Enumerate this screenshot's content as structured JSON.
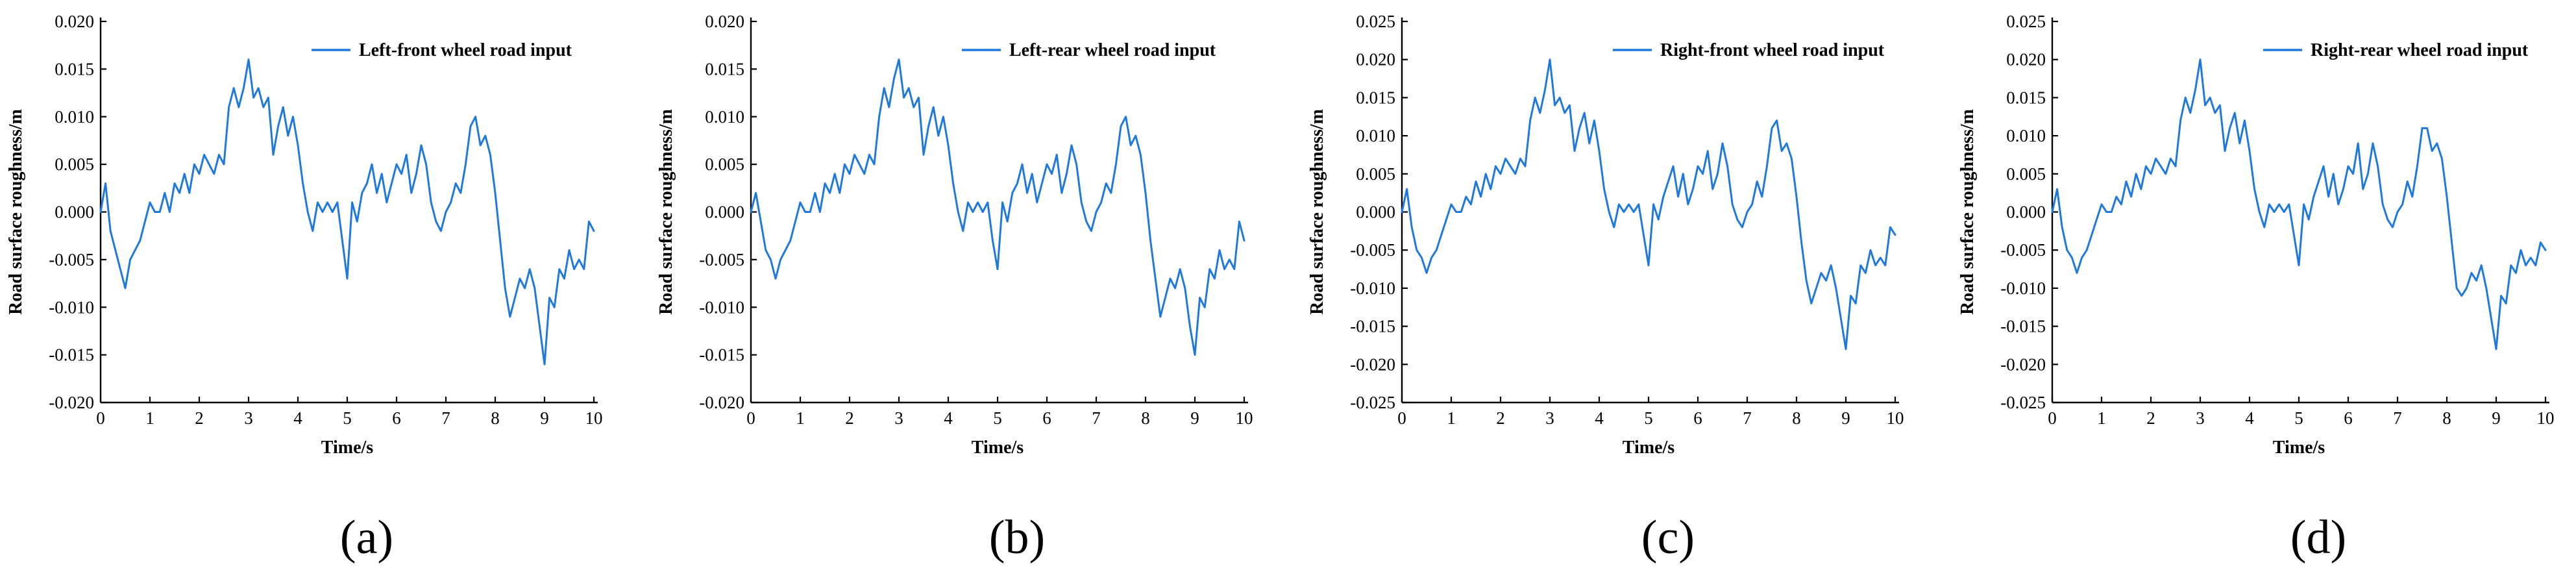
{
  "colors": {
    "series": "#1F78DC",
    "axis": "#000000"
  },
  "chart_data": [
    {
      "panel_label": "(a)",
      "type": "line",
      "xlabel": "Time/s",
      "ylabel": "Road surface roughness/m",
      "xlim": [
        0,
        10
      ],
      "ylim": [
        -0.02,
        0.02
      ],
      "xticks": [
        "0",
        "1",
        "2",
        "3",
        "4",
        "5",
        "6",
        "7",
        "8",
        "9",
        "10"
      ],
      "yticks": [
        -0.02,
        -0.015,
        -0.01,
        -0.005,
        0,
        0.005,
        0.01,
        0.015,
        0.02
      ],
      "ytick_labels": [
        "-0.020",
        "-0.015",
        "-0.010",
        "-0.005",
        "0.000",
        "0.005",
        "0.010",
        "0.015",
        "0.020"
      ],
      "legend": {
        "position": "top-right"
      },
      "series": [
        {
          "name": "Left-front wheel road input",
          "x": [
            0,
            0.1,
            0.2,
            0.3,
            0.4,
            0.5,
            0.6,
            0.7,
            0.8,
            0.9,
            1.0,
            1.1,
            1.2,
            1.3,
            1.4,
            1.5,
            1.6,
            1.7,
            1.8,
            1.9,
            2.0,
            2.1,
            2.2,
            2.3,
            2.4,
            2.5,
            2.6,
            2.7,
            2.8,
            2.9,
            3.0,
            3.1,
            3.2,
            3.3,
            3.4,
            3.5,
            3.6,
            3.7,
            3.8,
            3.9,
            4.0,
            4.1,
            4.2,
            4.3,
            4.4,
            4.5,
            4.6,
            4.7,
            4.8,
            4.9,
            5.0,
            5.1,
            5.2,
            5.3,
            5.4,
            5.5,
            5.6,
            5.7,
            5.8,
            5.9,
            6.0,
            6.1,
            6.2,
            6.3,
            6.4,
            6.5,
            6.6,
            6.7,
            6.8,
            6.9,
            7.0,
            7.1,
            7.2,
            7.3,
            7.4,
            7.5,
            7.6,
            7.7,
            7.8,
            7.9,
            8.0,
            8.1,
            8.2,
            8.3,
            8.4,
            8.5,
            8.6,
            8.7,
            8.8,
            8.9,
            9.0,
            9.1,
            9.2,
            9.3,
            9.4,
            9.5,
            9.6,
            9.7,
            9.8,
            9.9,
            10.0
          ],
          "y": [
            0.0,
            0.003,
            -0.002,
            -0.004,
            -0.006,
            -0.008,
            -0.005,
            -0.004,
            -0.003,
            -0.001,
            0.001,
            0.0,
            0.0,
            0.002,
            0.0,
            0.003,
            0.002,
            0.004,
            0.002,
            0.005,
            0.004,
            0.006,
            0.005,
            0.004,
            0.006,
            0.005,
            0.011,
            0.013,
            0.011,
            0.013,
            0.016,
            0.012,
            0.013,
            0.011,
            0.012,
            0.006,
            0.009,
            0.011,
            0.008,
            0.01,
            0.007,
            0.003,
            0.0,
            -0.002,
            0.001,
            0.0,
            0.001,
            0.0,
            0.001,
            -0.003,
            -0.007,
            0.001,
            -0.001,
            0.002,
            0.003,
            0.005,
            0.002,
            0.004,
            0.001,
            0.003,
            0.005,
            0.004,
            0.006,
            0.002,
            0.004,
            0.007,
            0.005,
            0.001,
            -0.001,
            -0.002,
            0.0,
            0.001,
            0.003,
            0.002,
            0.005,
            0.009,
            0.01,
            0.007,
            0.008,
            0.006,
            0.002,
            -0.003,
            -0.008,
            -0.011,
            -0.009,
            -0.007,
            -0.008,
            -0.006,
            -0.008,
            -0.012,
            -0.016,
            -0.009,
            -0.01,
            -0.006,
            -0.007,
            -0.004,
            -0.006,
            -0.005,
            -0.006,
            -0.001,
            -0.002
          ]
        }
      ]
    },
    {
      "panel_label": "(b)",
      "type": "line",
      "xlabel": "Time/s",
      "ylabel": "Road surface roughness/m",
      "xlim": [
        0,
        10
      ],
      "ylim": [
        -0.02,
        0.02
      ],
      "xticks": [
        "0",
        "1",
        "2",
        "3",
        "4",
        "5",
        "6",
        "7",
        "8",
        "9",
        "10"
      ],
      "yticks": [
        -0.02,
        -0.015,
        -0.01,
        -0.005,
        0,
        0.005,
        0.01,
        0.015,
        0.02
      ],
      "ytick_labels": [
        "-0.020",
        "-0.015",
        "-0.010",
        "-0.005",
        "0.000",
        "0.005",
        "0.010",
        "0.015",
        "0.020"
      ],
      "legend": {
        "position": "top-right"
      },
      "series": [
        {
          "name": "Left-rear wheel road input",
          "x": [
            0,
            0.1,
            0.2,
            0.3,
            0.4,
            0.5,
            0.6,
            0.7,
            0.8,
            0.9,
            1.0,
            1.1,
            1.2,
            1.3,
            1.4,
            1.5,
            1.6,
            1.7,
            1.8,
            1.9,
            2.0,
            2.1,
            2.2,
            2.3,
            2.4,
            2.5,
            2.6,
            2.7,
            2.8,
            2.9,
            3.0,
            3.1,
            3.2,
            3.3,
            3.4,
            3.5,
            3.6,
            3.7,
            3.8,
            3.9,
            4.0,
            4.1,
            4.2,
            4.3,
            4.4,
            4.5,
            4.6,
            4.7,
            4.8,
            4.9,
            5.0,
            5.1,
            5.2,
            5.3,
            5.4,
            5.5,
            5.6,
            5.7,
            5.8,
            5.9,
            6.0,
            6.1,
            6.2,
            6.3,
            6.4,
            6.5,
            6.6,
            6.7,
            6.8,
            6.9,
            7.0,
            7.1,
            7.2,
            7.3,
            7.4,
            7.5,
            7.6,
            7.7,
            7.8,
            7.9,
            8.0,
            8.1,
            8.2,
            8.3,
            8.4,
            8.5,
            8.6,
            8.7,
            8.8,
            8.9,
            9.0,
            9.1,
            9.2,
            9.3,
            9.4,
            9.5,
            9.6,
            9.7,
            9.8,
            9.9,
            10.0
          ],
          "y": [
            0.0,
            0.002,
            -0.001,
            -0.004,
            -0.005,
            -0.007,
            -0.005,
            -0.004,
            -0.003,
            -0.001,
            0.001,
            0.0,
            0.0,
            0.002,
            0.0,
            0.003,
            0.002,
            0.004,
            0.002,
            0.005,
            0.004,
            0.006,
            0.005,
            0.004,
            0.006,
            0.005,
            0.01,
            0.013,
            0.011,
            0.014,
            0.016,
            0.012,
            0.013,
            0.011,
            0.012,
            0.006,
            0.009,
            0.011,
            0.008,
            0.01,
            0.007,
            0.003,
            0.0,
            -0.002,
            0.001,
            0.0,
            0.001,
            0.0,
            0.001,
            -0.003,
            -0.006,
            0.001,
            -0.001,
            0.002,
            0.003,
            0.005,
            0.002,
            0.004,
            0.001,
            0.003,
            0.005,
            0.004,
            0.006,
            0.002,
            0.004,
            0.007,
            0.005,
            0.001,
            -0.001,
            -0.002,
            0.0,
            0.001,
            0.003,
            0.002,
            0.005,
            0.009,
            0.01,
            0.007,
            0.008,
            0.006,
            0.002,
            -0.003,
            -0.007,
            -0.011,
            -0.009,
            -0.007,
            -0.008,
            -0.006,
            -0.008,
            -0.012,
            -0.015,
            -0.009,
            -0.01,
            -0.006,
            -0.007,
            -0.004,
            -0.006,
            -0.005,
            -0.006,
            -0.001,
            -0.003
          ]
        }
      ]
    },
    {
      "panel_label": "(c)",
      "type": "line",
      "xlabel": "Time/s",
      "ylabel": "Road surface roughness/m",
      "xlim": [
        0,
        10
      ],
      "ylim": [
        -0.025,
        0.025
      ],
      "xticks": [
        "0",
        "1",
        "2",
        "3",
        "4",
        "5",
        "6",
        "7",
        "8",
        "9",
        "10"
      ],
      "yticks": [
        -0.025,
        -0.02,
        -0.015,
        -0.01,
        -0.005,
        0,
        0.005,
        0.01,
        0.015,
        0.02,
        0.025
      ],
      "ytick_labels": [
        "-0.025",
        "-0.020",
        "-0.015",
        "-0.010",
        "-0.005",
        "0.000",
        "0.005",
        "0.010",
        "0.015",
        "0.020",
        "0.025"
      ],
      "legend": {
        "position": "top-right"
      },
      "series": [
        {
          "name": "Right-front wheel road input",
          "x": [
            0,
            0.1,
            0.2,
            0.3,
            0.4,
            0.5,
            0.6,
            0.7,
            0.8,
            0.9,
            1.0,
            1.1,
            1.2,
            1.3,
            1.4,
            1.5,
            1.6,
            1.7,
            1.8,
            1.9,
            2.0,
            2.1,
            2.2,
            2.3,
            2.4,
            2.5,
            2.6,
            2.7,
            2.8,
            2.9,
            3.0,
            3.1,
            3.2,
            3.3,
            3.4,
            3.5,
            3.6,
            3.7,
            3.8,
            3.9,
            4.0,
            4.1,
            4.2,
            4.3,
            4.4,
            4.5,
            4.6,
            4.7,
            4.8,
            4.9,
            5.0,
            5.1,
            5.2,
            5.3,
            5.4,
            5.5,
            5.6,
            5.7,
            5.8,
            5.9,
            6.0,
            6.1,
            6.2,
            6.3,
            6.4,
            6.5,
            6.6,
            6.7,
            6.8,
            6.9,
            7.0,
            7.1,
            7.2,
            7.3,
            7.4,
            7.5,
            7.6,
            7.7,
            7.8,
            7.9,
            8.0,
            8.1,
            8.2,
            8.3,
            8.4,
            8.5,
            8.6,
            8.7,
            8.8,
            8.9,
            9.0,
            9.1,
            9.2,
            9.3,
            9.4,
            9.5,
            9.6,
            9.7,
            9.8,
            9.9,
            10.0
          ],
          "y": [
            0.0,
            0.003,
            -0.002,
            -0.005,
            -0.006,
            -0.008,
            -0.006,
            -0.005,
            -0.003,
            -0.001,
            0.001,
            0.0,
            0.0,
            0.002,
            0.001,
            0.004,
            0.002,
            0.005,
            0.003,
            0.006,
            0.005,
            0.007,
            0.006,
            0.005,
            0.007,
            0.006,
            0.012,
            0.015,
            0.013,
            0.016,
            0.02,
            0.014,
            0.015,
            0.013,
            0.014,
            0.008,
            0.011,
            0.013,
            0.009,
            0.012,
            0.008,
            0.003,
            0.0,
            -0.002,
            0.001,
            0.0,
            0.001,
            0.0,
            0.001,
            -0.003,
            -0.007,
            0.001,
            -0.001,
            0.002,
            0.004,
            0.006,
            0.002,
            0.005,
            0.001,
            0.003,
            0.006,
            0.005,
            0.008,
            0.003,
            0.005,
            0.009,
            0.006,
            0.001,
            -0.001,
            -0.002,
            0.0,
            0.001,
            0.004,
            0.002,
            0.006,
            0.011,
            0.012,
            0.008,
            0.009,
            0.007,
            0.002,
            -0.004,
            -0.009,
            -0.012,
            -0.01,
            -0.008,
            -0.009,
            -0.007,
            -0.01,
            -0.014,
            -0.018,
            -0.011,
            -0.012,
            -0.007,
            -0.008,
            -0.005,
            -0.007,
            -0.006,
            -0.007,
            -0.002,
            -0.003
          ]
        }
      ]
    },
    {
      "panel_label": "(d)",
      "type": "line",
      "xlabel": "Time/s",
      "ylabel": "Road surface roughness/m",
      "xlim": [
        0,
        10
      ],
      "ylim": [
        -0.025,
        0.025
      ],
      "xticks": [
        "0",
        "1",
        "2",
        "3",
        "4",
        "5",
        "6",
        "7",
        "8",
        "9",
        "10"
      ],
      "yticks": [
        -0.025,
        -0.02,
        -0.015,
        -0.01,
        -0.005,
        0,
        0.005,
        0.01,
        0.015,
        0.02,
        0.025
      ],
      "ytick_labels": [
        "-0.025",
        "-0.020",
        "-0.015",
        "-0.010",
        "-0.005",
        "0.000",
        "0.005",
        "0.010",
        "0.015",
        "0.020",
        "0.025"
      ],
      "legend": {
        "position": "top-right"
      },
      "series": [
        {
          "name": "Right-rear wheel road input",
          "x": [
            0,
            0.1,
            0.2,
            0.3,
            0.4,
            0.5,
            0.6,
            0.7,
            0.8,
            0.9,
            1.0,
            1.1,
            1.2,
            1.3,
            1.4,
            1.5,
            1.6,
            1.7,
            1.8,
            1.9,
            2.0,
            2.1,
            2.2,
            2.3,
            2.4,
            2.5,
            2.6,
            2.7,
            2.8,
            2.9,
            3.0,
            3.1,
            3.2,
            3.3,
            3.4,
            3.5,
            3.6,
            3.7,
            3.8,
            3.9,
            4.0,
            4.1,
            4.2,
            4.3,
            4.4,
            4.5,
            4.6,
            4.7,
            4.8,
            4.9,
            5.0,
            5.1,
            5.2,
            5.3,
            5.4,
            5.5,
            5.6,
            5.7,
            5.8,
            5.9,
            6.0,
            6.1,
            6.2,
            6.3,
            6.4,
            6.5,
            6.6,
            6.7,
            6.8,
            6.9,
            7.0,
            7.1,
            7.2,
            7.3,
            7.4,
            7.5,
            7.6,
            7.7,
            7.8,
            7.9,
            8.0,
            8.1,
            8.2,
            8.3,
            8.4,
            8.5,
            8.6,
            8.7,
            8.8,
            8.9,
            9.0,
            9.1,
            9.2,
            9.3,
            9.4,
            9.5,
            9.6,
            9.7,
            9.8,
            9.9,
            10.0
          ],
          "y": [
            0.0,
            0.003,
            -0.002,
            -0.005,
            -0.006,
            -0.008,
            -0.006,
            -0.005,
            -0.003,
            -0.001,
            0.001,
            0.0,
            0.0,
            0.002,
            0.001,
            0.004,
            0.002,
            0.005,
            0.003,
            0.006,
            0.005,
            0.007,
            0.006,
            0.005,
            0.007,
            0.006,
            0.012,
            0.015,
            0.013,
            0.016,
            0.02,
            0.014,
            0.015,
            0.013,
            0.014,
            0.008,
            0.011,
            0.013,
            0.009,
            0.012,
            0.008,
            0.003,
            0.0,
            -0.002,
            0.001,
            0.0,
            0.001,
            0.0,
            0.001,
            -0.003,
            -0.007,
            0.001,
            -0.001,
            0.002,
            0.004,
            0.006,
            0.002,
            0.005,
            0.001,
            0.003,
            0.006,
            0.005,
            0.009,
            0.003,
            0.005,
            0.009,
            0.006,
            0.001,
            -0.001,
            -0.002,
            0.0,
            0.001,
            0.004,
            0.002,
            0.006,
            0.011,
            0.011,
            0.008,
            0.009,
            0.007,
            0.002,
            -0.004,
            -0.01,
            -0.011,
            -0.01,
            -0.008,
            -0.009,
            -0.007,
            -0.01,
            -0.014,
            -0.018,
            -0.011,
            -0.012,
            -0.007,
            -0.008,
            -0.005,
            -0.007,
            -0.006,
            -0.007,
            -0.004,
            -0.005
          ]
        }
      ]
    }
  ]
}
